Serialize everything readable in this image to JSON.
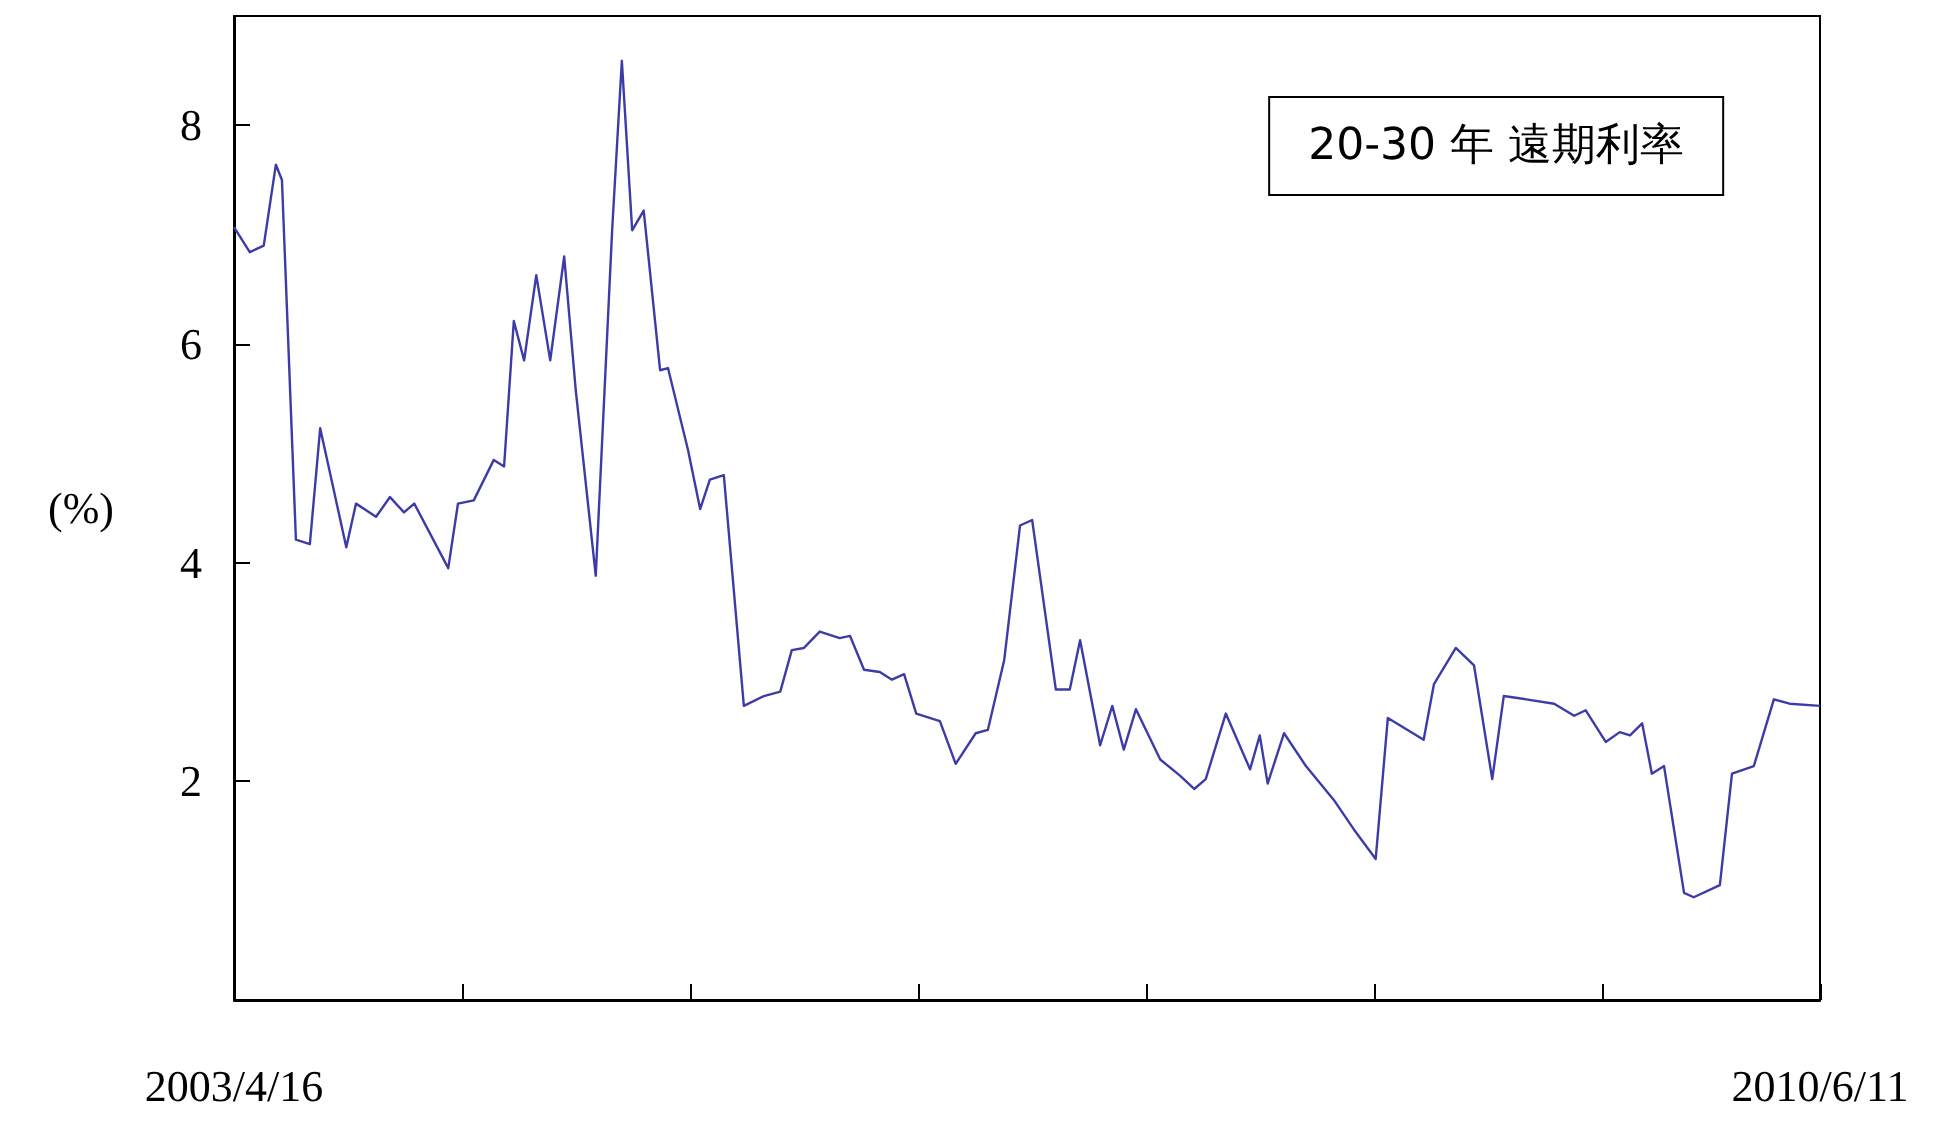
{
  "chart_data": {
    "type": "line",
    "title": "20-30 年 遠期利率",
    "ylabel": "(%)",
    "x": [
      "2003-04-16",
      "2003-05-12",
      "2003-06-04",
      "2003-06-24",
      "2003-07-04",
      "2003-07-27",
      "2003-08-19",
      "2003-09-05",
      "2003-09-24",
      "2003-10-18",
      "2003-11-03",
      "2003-12-06",
      "2003-12-29",
      "2004-01-21",
      "2004-02-07",
      "2004-04-03",
      "2004-04-19",
      "2004-05-15",
      "2004-06-17",
      "2004-07-04",
      "2004-07-20",
      "2004-08-06",
      "2004-08-26",
      "2004-09-18",
      "2004-10-11",
      "2004-10-30",
      "2004-12-02",
      "2004-12-29",
      "2005-01-14",
      "2005-01-31",
      "2005-02-19",
      "2005-03-18",
      "2005-03-31",
      "2005-05-03",
      "2005-05-23",
      "2005-06-08",
      "2005-07-01",
      "2005-08-03",
      "2005-09-05",
      "2005-10-02",
      "2005-10-21",
      "2005-11-10",
      "2005-12-06",
      "2006-01-08",
      "2006-01-25",
      "2006-02-17",
      "2006-03-15",
      "2006-04-04",
      "2006-04-24",
      "2006-05-14",
      "2006-06-22",
      "2006-07-18",
      "2006-08-20",
      "2006-09-09",
      "2006-10-06",
      "2006-11-01",
      "2006-11-21",
      "2006-12-30",
      "2007-01-22",
      "2007-02-08",
      "2007-03-13",
      "2007-04-02",
      "2007-04-21",
      "2007-05-11",
      "2007-06-20",
      "2007-07-23",
      "2007-08-15",
      "2007-09-03",
      "2007-10-06",
      "2007-11-15",
      "2007-12-01",
      "2007-12-14",
      "2008-01-10",
      "2008-02-15",
      "2008-04-01",
      "2008-05-04",
      "2008-06-09",
      "2008-06-29",
      "2008-08-27",
      "2008-09-13",
      "2008-10-19",
      "2008-11-18",
      "2008-12-18",
      "2009-01-06",
      "2009-02-12",
      "2009-03-30",
      "2009-05-02",
      "2009-05-21",
      "2009-06-23",
      "2009-07-16",
      "2009-08-02",
      "2009-08-22",
      "2009-09-07",
      "2009-09-27",
      "2009-10-30",
      "2009-11-15",
      "2009-12-28",
      "2010-01-17",
      "2010-02-22",
      "2010-03-27",
      "2010-04-22",
      "2010-06-11"
    ],
    "series": [
      {
        "color": "#3c3ca8",
        "values": [
          7.07,
          6.84,
          6.9,
          7.64,
          7.5,
          4.21,
          4.17,
          5.23,
          4.75,
          4.14,
          4.54,
          4.42,
          4.6,
          4.46,
          4.54,
          3.95,
          4.54,
          4.57,
          4.94,
          4.88,
          6.21,
          5.85,
          6.63,
          5.85,
          6.8,
          5.58,
          3.88,
          7.04,
          8.59,
          7.04,
          7.22,
          5.76,
          5.78,
          5.03,
          4.49,
          4.76,
          4.8,
          2.69,
          2.78,
          2.82,
          3.2,
          3.22,
          3.37,
          3.31,
          3.33,
          3.02,
          3.0,
          2.93,
          2.98,
          2.62,
          2.55,
          2.16,
          2.44,
          2.47,
          3.11,
          4.34,
          4.39,
          2.84,
          2.84,
          3.29,
          2.33,
          2.69,
          2.29,
          2.66,
          2.2,
          2.05,
          1.93,
          2.02,
          2.62,
          2.11,
          2.42,
          1.98,
          2.44,
          2.14,
          1.83,
          1.56,
          1.29,
          2.58,
          2.38,
          2.89,
          3.22,
          3.06,
          2.02,
          2.78,
          2.75,
          2.71,
          2.6,
          2.65,
          2.36,
          2.45,
          2.42,
          2.53,
          2.07,
          2.14,
          0.98,
          0.94,
          1.05,
          2.07,
          2.14,
          2.75,
          2.71,
          2.69
        ]
      }
    ],
    "xlim": [
      "2003-04-16",
      "2010-06-11"
    ],
    "xticks": [
      {
        "value": "2003-04-16",
        "label": "2003/4/16"
      },
      {
        "value": "2004-04-26",
        "label": null
      },
      {
        "value": "2005-05-06",
        "label": null
      },
      {
        "value": "2006-05-17",
        "label": null
      },
      {
        "value": "2007-05-27",
        "label": null
      },
      {
        "value": "2008-06-06",
        "label": null
      },
      {
        "value": "2009-06-17",
        "label": null
      },
      {
        "value": "2010-06-11",
        "label": "2010/6/11"
      }
    ],
    "ylim": [
      0,
      9
    ],
    "yticks": [
      2,
      4,
      6,
      8
    ],
    "marker": "none",
    "line_style": "solid",
    "grid": false
  }
}
